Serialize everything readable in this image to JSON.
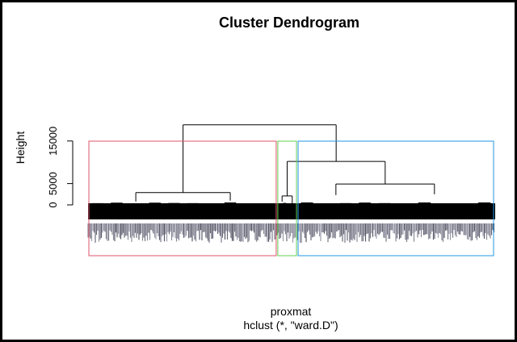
{
  "chart_data": {
    "type": "dendrogram",
    "title": "Cluster Dendrogram",
    "ylabel": "Height",
    "xlabel": "proxmat",
    "sub": "hclust (*, \"ward.D\")",
    "ylim": [
      0,
      20000
    ],
    "yticks": [
      0,
      5000,
      15000
    ],
    "ytick_labels": [
      "0",
      "5000",
      "15000"
    ],
    "root": {
      "height": 18800,
      "left": {
        "height": 2900,
        "lo": 0,
        "hi": 0.465,
        "left": {
          "height": 800,
          "lo": 0,
          "hi": 0.235
        },
        "right": {
          "height": 1000,
          "lo": 0.235,
          "hi": 0.465
        }
      },
      "right": {
        "height": 10200,
        "left": {
          "height": 2100,
          "lo": 0.465,
          "hi": 0.515,
          "left": {
            "height": 750,
            "lo": 0.465,
            "hi": 0.49
          },
          "right": {
            "height": 350,
            "lo": 0.49,
            "hi": 0.515
          }
        },
        "right": {
          "height": 4900,
          "lo": 0.515,
          "hi": 1,
          "left": {
            "height": 2300,
            "lo": 0.515,
            "hi": 0.705
          },
          "right": {
            "height": 2500,
            "lo": 0.705,
            "hi": 1
          }
        }
      }
    },
    "rect_hclust": [
      {
        "lo": 0,
        "hi": 0.465,
        "color": "#DF536B"
      },
      {
        "lo": 0.465,
        "hi": 0.515,
        "color": "#61D04F"
      },
      {
        "lo": 0.515,
        "hi": 1,
        "color": "#2297E6"
      }
    ]
  }
}
